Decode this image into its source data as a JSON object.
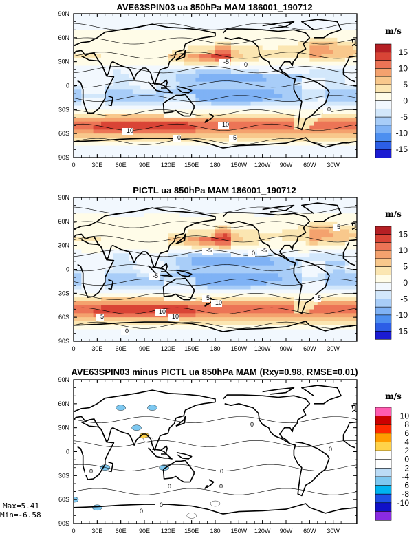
{
  "figure_stats": {
    "max": "Max=5.41",
    "min": "Min=-6.58"
  },
  "lat_ticks": [
    "90N",
    "60N",
    "30N",
    "0",
    "30S",
    "60S",
    "90S"
  ],
  "lon_ticks": [
    "0",
    "30E",
    "60E",
    "90E",
    "120E",
    "150E",
    "180",
    "150W",
    "120W",
    "90W",
    "60W",
    "30W"
  ],
  "chart_data": [
    {
      "type": "heatmap",
      "title": "AVE63SPIN03 ua 850hPa MAM 186001_190712",
      "colorbar_unit": "m/s",
      "colorbar_levels": [
        -17.5,
        -15,
        -12.5,
        -10,
        -7.5,
        -5,
        -2.5,
        0,
        2.5,
        5,
        7.5,
        10,
        12.5,
        15,
        17.5
      ],
      "colorbar_labels": [
        "15",
        "10",
        "5",
        "0",
        "-5",
        "-10",
        "-15"
      ],
      "colorbar_colors": [
        "#1b1bd2",
        "#2c5ee6",
        "#4d8ff0",
        "#7fb2f5",
        "#a8cdf8",
        "#d2e7fb",
        "#f2f8fe",
        "#fffce8",
        "#fbe6b2",
        "#f8c88c",
        "#f4a26e",
        "#ec7456",
        "#d94436",
        "#b51f24"
      ],
      "contour_labels": [
        "-5",
        "0",
        "10",
        "10",
        "5",
        "0",
        "0"
      ],
      "xlim": [
        0,
        360
      ],
      "ylim": [
        -90,
        90
      ]
    },
    {
      "type": "heatmap",
      "title": "PICTL ua 850hPa MAM 186001_190712",
      "colorbar_unit": "m/s",
      "colorbar_levels": [
        -17.5,
        -15,
        -12.5,
        -10,
        -7.5,
        -5,
        -2.5,
        0,
        2.5,
        5,
        7.5,
        10,
        12.5,
        15,
        17.5
      ],
      "colorbar_labels": [
        "15",
        "10",
        "5",
        "0",
        "-5",
        "-10",
        "-15"
      ],
      "colorbar_colors": [
        "#1b1bd2",
        "#2c5ee6",
        "#4d8ff0",
        "#7fb2f5",
        "#a8cdf8",
        "#d2e7fb",
        "#f2f8fe",
        "#fffce8",
        "#fbe6b2",
        "#f8c88c",
        "#f4a26e",
        "#ec7456",
        "#d94436",
        "#b51f24"
      ],
      "contour_labels": [
        "-5",
        "-5",
        "-5",
        "5",
        "5",
        "10",
        "10",
        "5",
        "10",
        "5",
        "0",
        "0"
      ],
      "xlim": [
        0,
        360
      ],
      "ylim": [
        -90,
        90
      ]
    },
    {
      "type": "heatmap",
      "title": "AVE63SPIN03 minus PICTL ua 850hPa MAM (Rxy=0.98, RMSE=0.01)",
      "colorbar_unit": "m/s",
      "colorbar_levels": [
        -11,
        -10,
        -8,
        -6,
        -4,
        -2,
        0,
        2,
        4,
        6,
        8,
        10,
        11
      ],
      "colorbar_labels": [
        "10",
        "8",
        "6",
        "4",
        "2",
        "0",
        "-2",
        "-4",
        "-6",
        "-8",
        "-10"
      ],
      "colorbar_colors": [
        "#8a2be2",
        "#1010c8",
        "#1e50e6",
        "#00b4f0",
        "#7ec8f0",
        "#bcdcf6",
        "#ffffff",
        "#ffffff",
        "#ffd34a",
        "#ff9c00",
        "#ff2a00",
        "#cc0000",
        "#ff5bb0"
      ],
      "contour_labels": [
        "0",
        "0",
        "0",
        "0",
        "0",
        "0",
        "0",
        "0"
      ],
      "xlim": [
        0,
        360
      ],
      "ylim": [
        -90,
        90
      ]
    }
  ]
}
